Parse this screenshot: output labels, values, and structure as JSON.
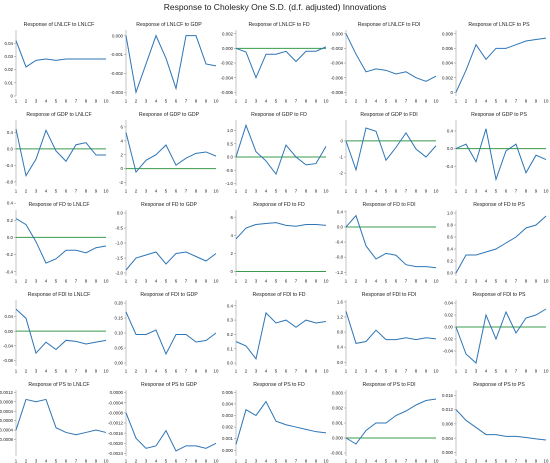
{
  "figure": {
    "title": "Response to Cholesky One S.D. (d.f. adjusted) Innovations"
  },
  "colors": {
    "response_line": "#2e75b6",
    "zero_line": "#3a9b4a",
    "axis": "#888888",
    "text": "#222222"
  },
  "chart_data": [
    {
      "type": "line",
      "title": "Response of LNLCF to LNLCF",
      "x": [
        1,
        2,
        3,
        4,
        5,
        6,
        7,
        8,
        9,
        10
      ],
      "values": [
        0.042,
        0.022,
        0.027,
        0.028,
        0.027,
        0.028,
        0.028,
        0.028,
        0.028,
        0.028
      ],
      "ylim": [
        0,
        0.05
      ],
      "yticks": [
        "0.04",
        "0.03",
        "0.02",
        "0.01",
        "0"
      ],
      "ytickvals": [
        0.04,
        0.03,
        0.02,
        0.01,
        0
      ],
      "zero": null
    },
    {
      "type": "line",
      "title": "Response of LNLCF to GDP",
      "x": [
        1,
        2,
        3,
        4,
        5,
        6,
        7,
        8,
        9,
        10
      ],
      "values": [
        0.0,
        -0.003,
        -0.0015,
        0.0,
        -0.0012,
        -0.0028,
        0.0,
        -0.0,
        -0.0015,
        -0.0016
      ],
      "ylim": [
        -0.0032,
        0.0003
      ],
      "yticks": [
        "0.000",
        "-0.001",
        "-0.002",
        "-0.003"
      ],
      "ytickvals": [
        0,
        -0.001,
        -0.002,
        -0.003
      ],
      "zero": null
    },
    {
      "type": "line",
      "title": "Response of LNLCF to FD",
      "x": [
        1,
        2,
        3,
        4,
        5,
        6,
        7,
        8,
        9,
        10
      ],
      "values": [
        0.0,
        -0.0005,
        -0.004,
        -0.0008,
        -0.0008,
        -0.0004,
        -0.0018,
        -0.0004,
        -0.0004,
        0.0002
      ],
      "ylim": [
        -0.0065,
        0.0025
      ],
      "yticks": [
        "0.002",
        "0.000",
        "-0.002",
        "-0.004",
        "-0.006"
      ],
      "ytickvals": [
        0.002,
        0,
        -0.002,
        -0.004,
        -0.006
      ],
      "zero": 0
    },
    {
      "type": "line",
      "title": "Response of LNLCF to FDI",
      "x": [
        1,
        2,
        3,
        4,
        5,
        6,
        7,
        8,
        9,
        10
      ],
      "values": [
        0.0,
        -0.0028,
        -0.0052,
        -0.0048,
        -0.005,
        -0.0055,
        -0.0052,
        -0.006,
        -0.0065,
        -0.0058
      ],
      "ylim": [
        -0.0085,
        0.0005
      ],
      "yticks": [
        "0.000",
        "-0.002",
        "-0.004",
        "-0.006",
        "-0.008"
      ],
      "ytickvals": [
        0,
        -0.002,
        -0.004,
        -0.006,
        -0.008
      ],
      "zero": null
    },
    {
      "type": "line",
      "title": "Response of LNLCF to PS",
      "x": [
        1,
        2,
        3,
        4,
        5,
        6,
        7,
        8,
        9,
        10
      ],
      "values": [
        0.0,
        0.003,
        0.0065,
        0.0045,
        0.006,
        0.006,
        0.0065,
        0.007,
        0.0072,
        0.0074
      ],
      "ylim": [
        -0.0005,
        0.0085
      ],
      "yticks": [
        "0.008",
        "0.006",
        "0.004",
        "0.002",
        "0"
      ],
      "ytickvals": [
        0.008,
        0.006,
        0.004,
        0.002,
        0
      ],
      "zero": null
    },
    {
      "type": "line",
      "title": "Response of GDP to LNLCF",
      "x": [
        1,
        2,
        3,
        4,
        5,
        6,
        7,
        8,
        9,
        10
      ],
      "values": [
        0.48,
        -0.65,
        -0.25,
        0.45,
        -0.05,
        -0.3,
        0.1,
        0.15,
        -0.15,
        -0.15
      ],
      "ylim": [
        -0.9,
        0.7
      ],
      "yticks": [
        "0.4",
        "0.0",
        "-0.4",
        "-0.8"
      ],
      "ytickvals": [
        0.4,
        0,
        -0.4,
        -0.8
      ],
      "zero": 0
    },
    {
      "type": "line",
      "title": "Response of GDP to GDP",
      "x": [
        1,
        2,
        3,
        4,
        5,
        6,
        7,
        8,
        9,
        10
      ],
      "values": [
        5.2,
        -0.5,
        1.2,
        2.0,
        3.4,
        0.5,
        1.5,
        2.2,
        2.4,
        1.8
      ],
      "ylim": [
        -2.5,
        7
      ],
      "yticks": [
        "6",
        "4",
        "2",
        "0",
        "-2"
      ],
      "ytickvals": [
        6,
        4,
        2,
        0,
        -2
      ],
      "zero": 0
    },
    {
      "type": "line",
      "title": "Response of GDP to FD",
      "x": [
        1,
        2,
        3,
        4,
        5,
        6,
        7,
        8,
        9,
        10
      ],
      "values": [
        0.0,
        1.2,
        0.2,
        -0.15,
        -0.65,
        0.45,
        0.0,
        -0.3,
        -0.25,
        0.4
      ],
      "ylim": [
        -1.1,
        1.4
      ],
      "yticks": [
        "1.0",
        "0.5",
        "0.0",
        "-0.5",
        "-1.0"
      ],
      "ytickvals": [
        1,
        0.5,
        0,
        -0.5,
        -1
      ],
      "zero": 0
    },
    {
      "type": "line",
      "title": "Response of GDP to FDI",
      "x": [
        1,
        2,
        3,
        4,
        5,
        6,
        7,
        8,
        9,
        10
      ],
      "values": [
        0.0,
        -1.8,
        0.8,
        0.6,
        -1.2,
        -0.4,
        0.5,
        -0.5,
        -1.0,
        -0.3
      ],
      "ylim": [
        -2.8,
        1.3
      ],
      "yticks": [
        "0",
        "-1",
        "-2"
      ],
      "ytickvals": [
        0,
        -1,
        -2
      ],
      "zero": 0
    },
    {
      "type": "line",
      "title": "Response of GDP to PS",
      "x": [
        1,
        2,
        3,
        4,
        5,
        6,
        7,
        8,
        9,
        10
      ],
      "values": [
        0.0,
        0.1,
        -0.3,
        0.45,
        -0.7,
        -0.05,
        0.1,
        -0.55,
        -0.15,
        -0.25
      ],
      "ylim": [
        -0.85,
        0.65
      ],
      "yticks": [
        "0.4",
        "0.0",
        "-0.4"
      ],
      "ytickvals": [
        0.4,
        0,
        -0.4
      ],
      "zero": 0
    },
    {
      "type": "line",
      "title": "Response of FD to LNLCF",
      "x": [
        1,
        2,
        3,
        4,
        5,
        6,
        7,
        8,
        9,
        10
      ],
      "values": [
        0.22,
        0.15,
        -0.05,
        -0.3,
        -0.25,
        -0.15,
        -0.15,
        -0.18,
        -0.12,
        -0.1
      ],
      "ylim": [
        -0.45,
        0.32
      ],
      "yticks": [
        "0.4",
        "0.2",
        "0.0",
        "-0.2",
        "-0.4"
      ],
      "ytickvals": [
        0.4,
        0.2,
        0,
        -0.2,
        -0.4
      ],
      "zero": 0
    },
    {
      "type": "line",
      "title": "Response of FD to GDP",
      "x": [
        1,
        2,
        3,
        4,
        5,
        6,
        7,
        8,
        9,
        10
      ],
      "values": [
        -1.9,
        -1.5,
        -1.4,
        -1.3,
        -1.7,
        -1.35,
        -1.3,
        -1.45,
        -1.6,
        -1.35
      ],
      "ylim": [
        -2.1,
        0.1
      ],
      "yticks": [
        "0.0",
        "-0.5",
        "-1.0",
        "-1.5",
        "-2.0"
      ],
      "ytickvals": [
        0,
        -0.5,
        -1,
        -1.5,
        -2
      ],
      "zero": null
    },
    {
      "type": "line",
      "title": "Response of FD to FD",
      "x": [
        1,
        2,
        3,
        4,
        5,
        6,
        7,
        8,
        9,
        10
      ],
      "values": [
        3.6,
        4.8,
        5.2,
        5.3,
        5.4,
        5.1,
        5.0,
        5.2,
        5.2,
        5.1
      ],
      "ylim": [
        -0.5,
        6.8
      ],
      "yticks": [
        "6",
        "4",
        "2",
        "0"
      ],
      "ytickvals": [
        6,
        4,
        2,
        0
      ],
      "zero": 0
    },
    {
      "type": "line",
      "title": "Response of FD to FDI",
      "x": [
        1,
        2,
        3,
        4,
        5,
        6,
        7,
        8,
        9,
        10
      ],
      "values": [
        0.0,
        0.3,
        -0.5,
        -0.85,
        -0.7,
        -0.75,
        -1.0,
        -1.05,
        -1.05,
        -1.08
      ],
      "ylim": [
        -1.3,
        0.45
      ],
      "yticks": [
        "0.4",
        "0.0",
        "-0.4",
        "-0.8",
        "-1.2"
      ],
      "ytickvals": [
        0.4,
        0,
        -0.4,
        -0.8,
        -1.2
      ],
      "zero": 0
    },
    {
      "type": "line",
      "title": "Response of FD to PS",
      "x": [
        1,
        2,
        3,
        4,
        5,
        6,
        7,
        8,
        9,
        10
      ],
      "values": [
        0.0,
        0.3,
        0.3,
        0.35,
        0.4,
        0.5,
        0.6,
        0.75,
        0.8,
        0.95
      ],
      "ylim": [
        -0.05,
        1.05
      ],
      "yticks": [
        "1.0",
        "0.8",
        "0.6",
        "0.4",
        "0.2",
        "0.0"
      ],
      "ytickvals": [
        1,
        0.8,
        0.6,
        0.4,
        0.2,
        0
      ],
      "zero": null
    },
    {
      "type": "line",
      "title": "Response of FDI to LNLCF",
      "x": [
        1,
        2,
        3,
        4,
        5,
        6,
        7,
        8,
        9,
        10
      ],
      "values": [
        0.06,
        0.035,
        -0.06,
        -0.03,
        -0.05,
        -0.025,
        -0.028,
        -0.035,
        -0.03,
        -0.025
      ],
      "ylim": [
        -0.095,
        0.085
      ],
      "yticks": [
        "0.04",
        "0.00",
        "-0.04",
        "-0.08"
      ],
      "ytickvals": [
        0.04,
        0,
        -0.04,
        -0.08
      ],
      "zero": 0
    },
    {
      "type": "line",
      "title": "Response of FDI to GDP",
      "x": [
        1,
        2,
        3,
        4,
        5,
        6,
        7,
        8,
        9,
        10
      ],
      "values": [
        0.17,
        0.095,
        0.095,
        0.11,
        0.03,
        0.095,
        0.095,
        0.07,
        0.075,
        0.1
      ],
      "ylim": [
        -0.01,
        0.21
      ],
      "yticks": [
        "0.20",
        "0.15",
        "0.10",
        "0.05",
        "0.00"
      ],
      "ytickvals": [
        0.2,
        0.15,
        0.1,
        0.05,
        0
      ],
      "zero": null
    },
    {
      "type": "line",
      "title": "Response of FDI to FD",
      "x": [
        1,
        2,
        3,
        4,
        5,
        6,
        7,
        8,
        9,
        10
      ],
      "values": [
        0.15,
        0.12,
        0.03,
        0.35,
        0.28,
        0.3,
        0.25,
        0.3,
        0.28,
        0.29
      ],
      "ylim": [
        -0.02,
        0.44
      ],
      "yticks": [
        "0.4",
        "0.3",
        "0.2",
        "0.1",
        "0.0"
      ],
      "ytickvals": [
        0.4,
        0.3,
        0.2,
        0.1,
        0
      ],
      "zero": null
    },
    {
      "type": "line",
      "title": "Response of FDI to FDI",
      "x": [
        1,
        2,
        3,
        4,
        5,
        6,
        7,
        8,
        9,
        10
      ],
      "values": [
        1.35,
        0.5,
        0.55,
        0.85,
        0.6,
        0.6,
        0.65,
        0.6,
        0.65,
        0.62
      ],
      "ylim": [
        -0.1,
        1.65
      ],
      "yticks": [
        "1.6",
        "1.2",
        "0.8",
        "0.4",
        "0.0"
      ],
      "ytickvals": [
        1.6,
        1.2,
        0.8,
        0.4,
        0
      ],
      "zero": null
    },
    {
      "type": "line",
      "title": "Response of FDI to PS",
      "x": [
        1,
        2,
        3,
        4,
        5,
        6,
        7,
        8,
        9,
        10
      ],
      "values": [
        0.0,
        -0.045,
        -0.06,
        0.02,
        -0.02,
        0.025,
        -0.01,
        0.015,
        0.02,
        0.03
      ],
      "ylim": [
        -0.065,
        0.045
      ],
      "yticks": [
        "0.04",
        "0.02",
        "0.00",
        "-0.02",
        "-0.04"
      ],
      "ytickvals": [
        0.04,
        0.02,
        0,
        -0.02,
        -0.04
      ],
      "zero": 0
    },
    {
      "type": "line",
      "title": "Response of PS to LNLCF",
      "x": [
        1,
        2,
        3,
        4,
        5,
        6,
        7,
        8,
        9,
        10
      ],
      "values": [
        -0.0004,
        0.0009,
        0.0008,
        0.0009,
        -0.0003,
        -0.0005,
        -0.0006,
        -0.0005,
        -0.0004,
        -0.0005
      ],
      "ylim": [
        -0.0015,
        0.0013
      ],
      "yticks": [
        "0.0012",
        "0.0008",
        "0.0004",
        "0.0000",
        "-0.0004",
        "-0.0008"
      ],
      "ytickvals": [
        0.0012,
        0.0008,
        0.0004,
        0,
        -0.0004,
        -0.0008
      ],
      "zero": null
    },
    {
      "type": "line",
      "title": "Response of PS to GDP",
      "x": [
        1,
        2,
        3,
        4,
        5,
        6,
        7,
        8,
        9,
        10
      ],
      "values": [
        -0.0008,
        -0.0018,
        -0.0022,
        -0.0021,
        -0.0015,
        -0.0023,
        -0.0021,
        -0.0021,
        -0.0022,
        -0.002
      ],
      "ylim": [
        -0.0025,
        0.0001
      ],
      "yticks": [
        "0.0000",
        "-0.0004",
        "-0.0008",
        "-0.0012",
        "-0.0016",
        "-0.0020",
        "-0.0024"
      ],
      "ytickvals": [
        0,
        -0.0004,
        -0.0008,
        -0.0012,
        -0.0016,
        -0.002,
        -0.0024
      ],
      "zero": null
    },
    {
      "type": "line",
      "title": "Response of PS to FD",
      "x": [
        1,
        2,
        3,
        4,
        5,
        6,
        7,
        8,
        9,
        10
      ],
      "values": [
        0.0005,
        0.0035,
        0.003,
        0.0042,
        0.0025,
        0.0022,
        0.002,
        0.0018,
        0.0016,
        0.0015
      ],
      "ylim": [
        -0.0005,
        0.0052
      ],
      "yticks": [
        "0.005",
        "0.004",
        "0.003",
        "0.002",
        "0.001",
        "0.000"
      ],
      "ytickvals": [
        0.005,
        0.004,
        0.003,
        0.002,
        0.001,
        0
      ],
      "zero": null
    },
    {
      "type": "line",
      "title": "Response of PS to FDI",
      "x": [
        1,
        2,
        3,
        4,
        5,
        6,
        7,
        8,
        9,
        10
      ],
      "values": [
        0.0,
        -0.0004,
        0.0005,
        0.001,
        0.001,
        0.0015,
        0.0018,
        0.0022,
        0.0025,
        0.0026
      ],
      "ylim": [
        -0.0012,
        0.0032
      ],
      "yticks": [
        "0.003",
        "0.002",
        "0.001",
        "0.000",
        "-0.001"
      ],
      "ytickvals": [
        0.003,
        0.002,
        0.001,
        0,
        -0.001
      ],
      "zero": 0
    },
    {
      "type": "line",
      "title": "Response of PS to PS",
      "x": [
        1,
        2,
        3,
        4,
        5,
        6,
        7,
        8,
        9,
        10
      ],
      "values": [
        0.012,
        0.009,
        0.007,
        0.005,
        0.005,
        0.0045,
        0.0045,
        0.0042,
        0.0038,
        0.0035
      ],
      "ylim": [
        -0.001,
        0.0175
      ],
      "yticks": [
        "0.016",
        "0.012",
        "0.008",
        "0.004",
        "0.000"
      ],
      "ytickvals": [
        0.016,
        0.012,
        0.008,
        0.004,
        0
      ],
      "zero": null
    }
  ]
}
